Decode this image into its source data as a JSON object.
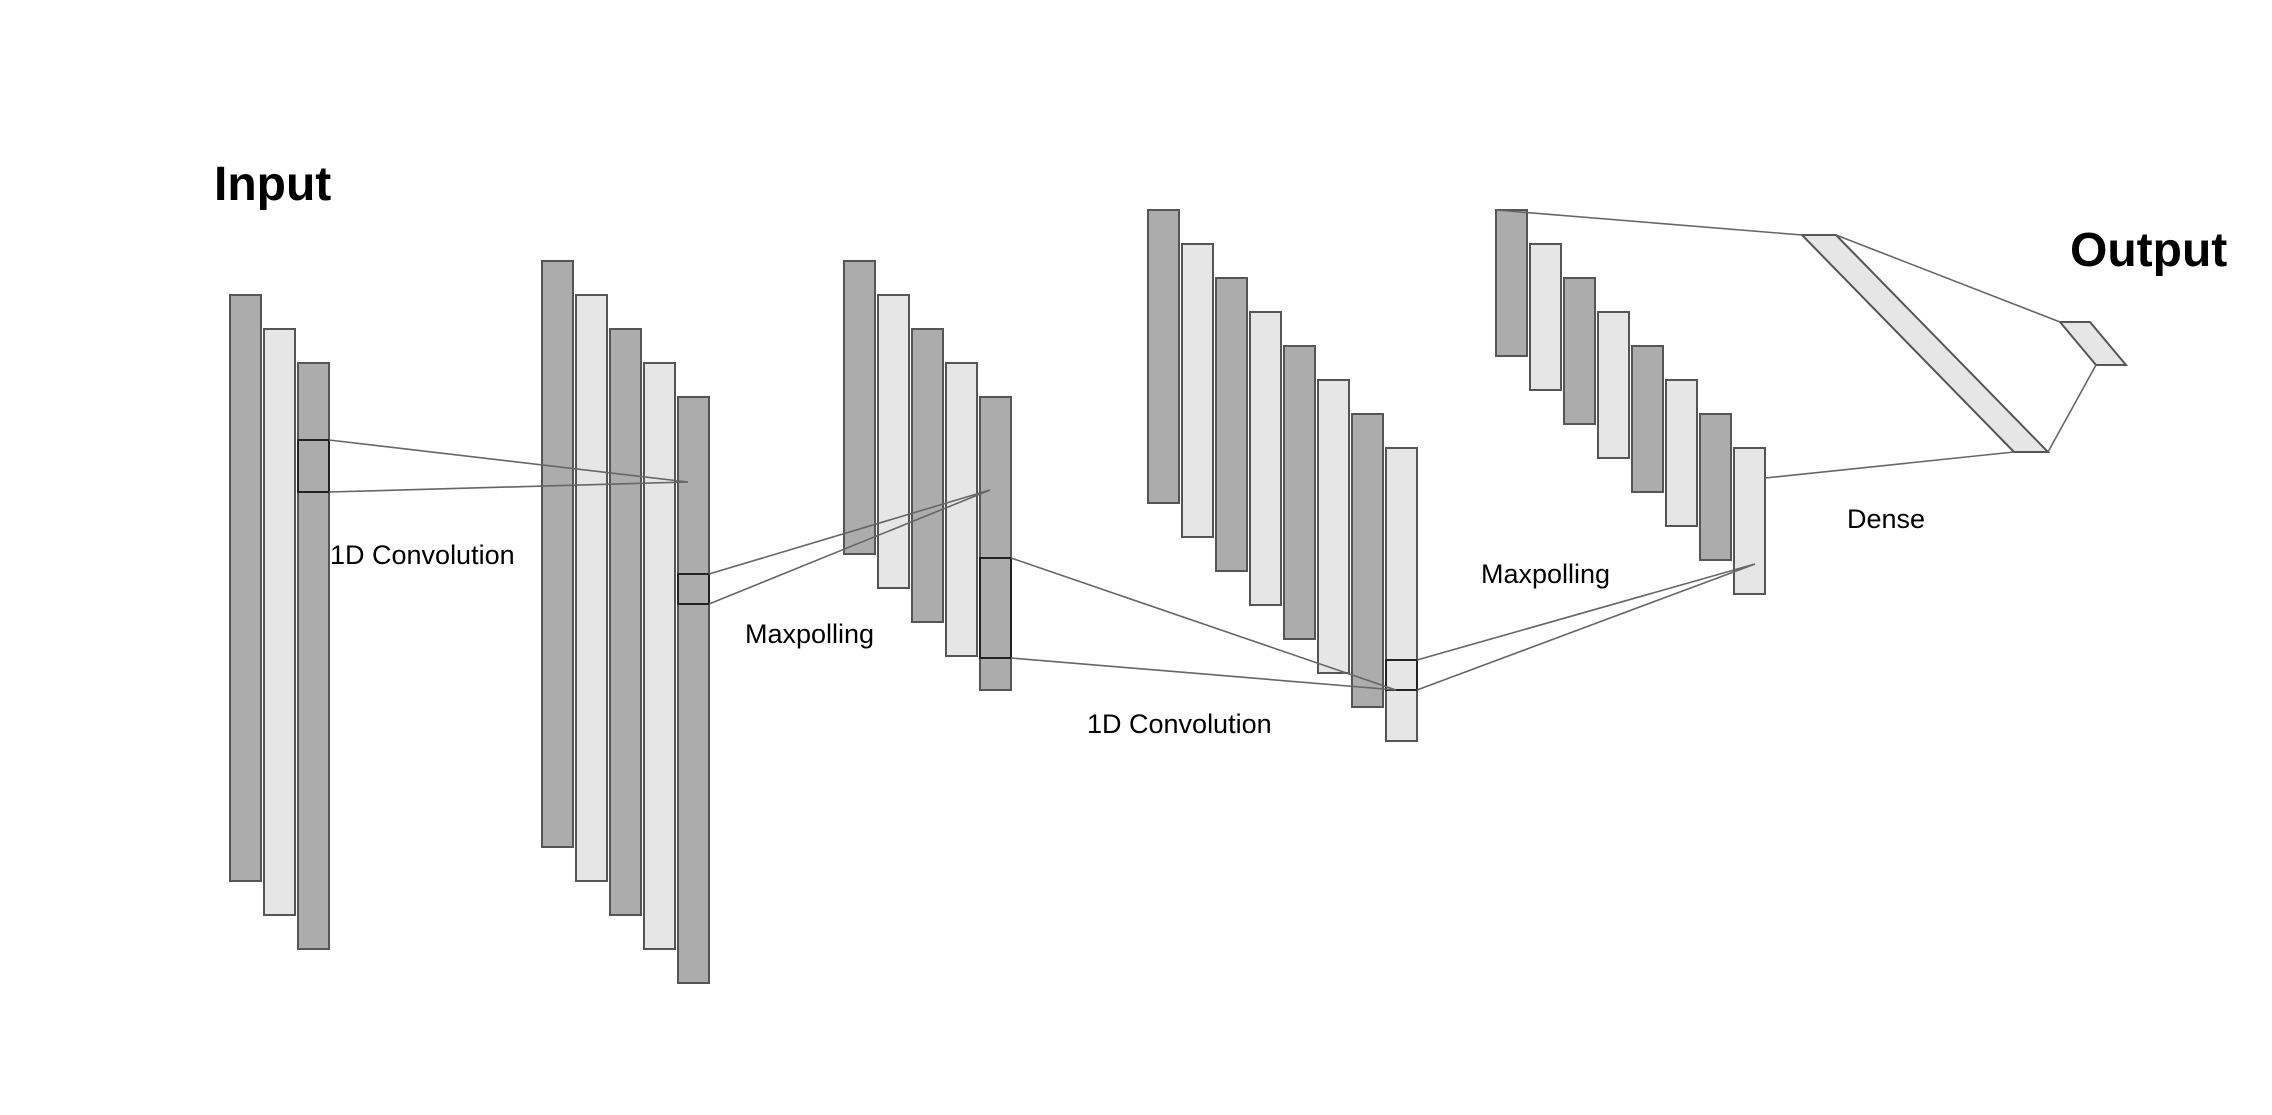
{
  "labels": {
    "input": "Input",
    "output": "Output",
    "conv1": "1D Convolution",
    "pool1": "Maxpolling",
    "conv2": "1D Convolution",
    "pool2": "Maxpolling",
    "dense": "Dense"
  },
  "colors": {
    "dark_bar": "#acacac",
    "light_bar": "#e6e6e6",
    "stroke": "#555555",
    "connector": "#666666"
  }
}
